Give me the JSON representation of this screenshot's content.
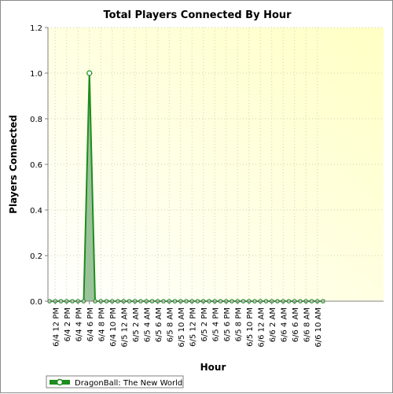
{
  "chart_data": {
    "type": "area",
    "title": "Total Players Connected By Hour",
    "xlabel": "Hour",
    "ylabel": "Players Connected",
    "ylim": [
      0,
      1.2
    ],
    "yticks": [
      "0.0",
      "0.2",
      "0.4",
      "0.6",
      "0.8",
      "1.0",
      "1.2"
    ],
    "ytick_values": [
      0,
      0.2,
      0.4,
      0.6,
      0.8,
      1.0,
      1.2
    ],
    "xticks": [
      "6/4 12 PM",
      "6/4 2 PM",
      "6/4 4 PM",
      "6/4 6 PM",
      "6/4 8 PM",
      "6/4 10 PM",
      "6/5 12 AM",
      "6/5 2 AM",
      "6/5 4 AM",
      "6/5 6 AM",
      "6/5 8 AM",
      "6/5 10 AM",
      "6/5 12 PM",
      "6/5 2 PM",
      "6/5 4 PM",
      "6/5 6 PM",
      "6/5 8 PM",
      "6/5 10 PM",
      "6/6 12 AM",
      "6/6 2 AM",
      "6/6 4 AM",
      "6/6 6 AM",
      "6/6 8 AM",
      "6/6 10 AM"
    ],
    "x": [
      "6/4 11 AM",
      "6/4 12 PM",
      "6/4 1 PM",
      "6/4 2 PM",
      "6/4 3 PM",
      "6/4 4 PM",
      "6/4 5 PM",
      "6/4 6 PM",
      "6/4 7 PM",
      "6/4 8 PM",
      "6/4 9 PM",
      "6/4 10 PM",
      "6/4 11 PM",
      "6/5 12 AM",
      "6/5 1 AM",
      "6/5 2 AM",
      "6/5 3 AM",
      "6/5 4 AM",
      "6/5 5 AM",
      "6/5 6 AM",
      "6/5 7 AM",
      "6/5 8 AM",
      "6/5 9 AM",
      "6/5 10 AM",
      "6/5 11 AM",
      "6/5 12 PM",
      "6/5 1 PM",
      "6/5 2 PM",
      "6/5 3 PM",
      "6/5 4 PM",
      "6/5 5 PM",
      "6/5 6 PM",
      "6/5 7 PM",
      "6/5 8 PM",
      "6/5 9 PM",
      "6/5 10 PM",
      "6/5 11 PM",
      "6/6 12 AM",
      "6/6 1 AM",
      "6/6 2 AM",
      "6/6 3 AM",
      "6/6 4 AM",
      "6/6 5 AM",
      "6/6 6 AM",
      "6/6 7 AM",
      "6/6 8 AM",
      "6/6 9 AM",
      "6/6 10 AM",
      "6/6 11 AM"
    ],
    "series": [
      {
        "name": "DragonBall: The New World",
        "color": "#1e8c1e",
        "values": [
          0,
          0,
          0,
          0,
          0,
          0,
          0,
          1,
          0,
          0,
          0,
          0,
          0,
          0,
          0,
          0,
          0,
          0,
          0,
          0,
          0,
          0,
          0,
          0,
          0,
          0,
          0,
          0,
          0,
          0,
          0,
          0,
          0,
          0,
          0,
          0,
          0,
          0,
          0,
          0,
          0,
          0,
          0,
          0,
          0,
          0,
          0,
          0,
          0
        ]
      }
    ],
    "grid": true,
    "legend_position": "bottom-left"
  }
}
